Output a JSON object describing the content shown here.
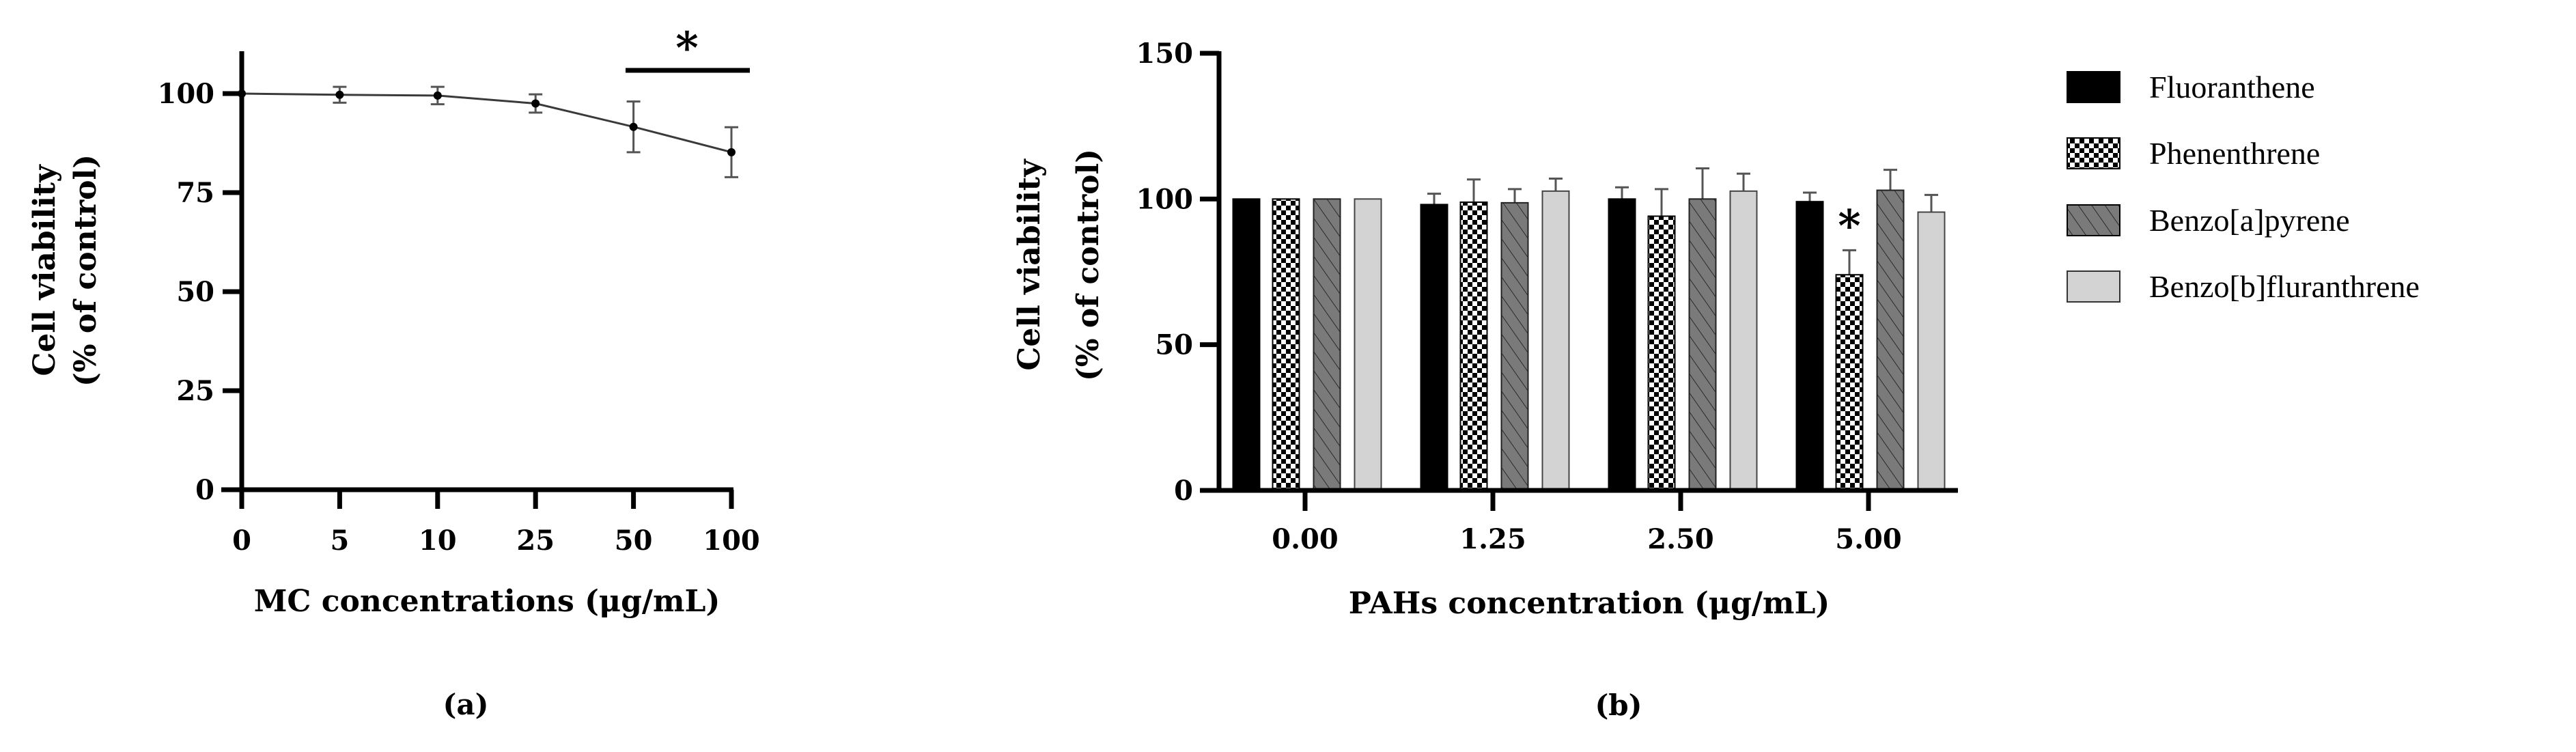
{
  "chart_data": [
    {
      "id": "a",
      "type": "line",
      "subfigure_label": "(a)",
      "title": "",
      "xlabel": "MC concentrations (μg/mL)",
      "ylabel_lines": [
        "Cell viability",
        "(% of control)"
      ],
      "categories": [
        "0",
        "5",
        "10",
        "25",
        "50",
        "100"
      ],
      "values": [
        100,
        99.7,
        99.5,
        97.5,
        91.6,
        85.2
      ],
      "errors": [
        0,
        2.0,
        2.2,
        2.3,
        6.4,
        6.3
      ],
      "yticks": [
        0,
        25,
        50,
        75,
        100
      ],
      "ylim": [
        0,
        110
      ],
      "grid": false,
      "annotations": [
        {
          "text": "*",
          "type": "significance-bar",
          "from": "50",
          "to": "100"
        }
      ]
    },
    {
      "id": "b",
      "type": "bar",
      "subfigure_label": "(b)",
      "title": "",
      "xlabel": "PAHs concentration (μg/mL)",
      "ylabel_lines": [
        "Cell viability",
        "(% of control)"
      ],
      "categories": [
        "0.00",
        "1.25",
        "2.50",
        "5.00"
      ],
      "yticks": [
        0,
        50,
        100,
        150
      ],
      "ylim": [
        0,
        150
      ],
      "grid": false,
      "legend_position": "right",
      "series": [
        {
          "name": "Fluoranthene",
          "pattern": "solid-black",
          "values": [
            100,
            98.1,
            100,
            99.1
          ],
          "errors": [
            0,
            3.7,
            4.0,
            3.1
          ]
        },
        {
          "name": "Phenenthrene",
          "pattern": "checker",
          "values": [
            100,
            98.9,
            94.1,
            74.0
          ],
          "errors": [
            0,
            7.8,
            9.3,
            8.4
          ]
        },
        {
          "name": "Benzo[a]pyrene",
          "pattern": "diagonal-hatch-grey",
          "values": [
            100,
            98.7,
            100,
            103.0
          ],
          "errors": [
            0,
            4.7,
            10.5,
            7.0
          ]
        },
        {
          "name": "Benzo[b]fluranthrene",
          "pattern": "light-grey",
          "values": [
            100,
            102.7,
            102.7,
            95.5
          ],
          "errors": [
            0,
            4.3,
            6.0,
            5.9
          ]
        }
      ],
      "annotations": [
        {
          "text": "*",
          "series": "Phenenthrene",
          "category": "5.00"
        }
      ]
    }
  ],
  "legend": {
    "items": [
      {
        "label": "Fluoranthene"
      },
      {
        "label": "Phenenthrene"
      },
      {
        "label": "Benzo[a]pyrene"
      },
      {
        "label": "Benzo[b]fluranthrene"
      }
    ]
  },
  "colors": {
    "axis": "#000000",
    "line": "#3a3a3a",
    "errorbar": "#555555",
    "black_bar": "#000000",
    "hatch_fill": "#7a7a7a",
    "light_bar": "#d3d3d3"
  }
}
